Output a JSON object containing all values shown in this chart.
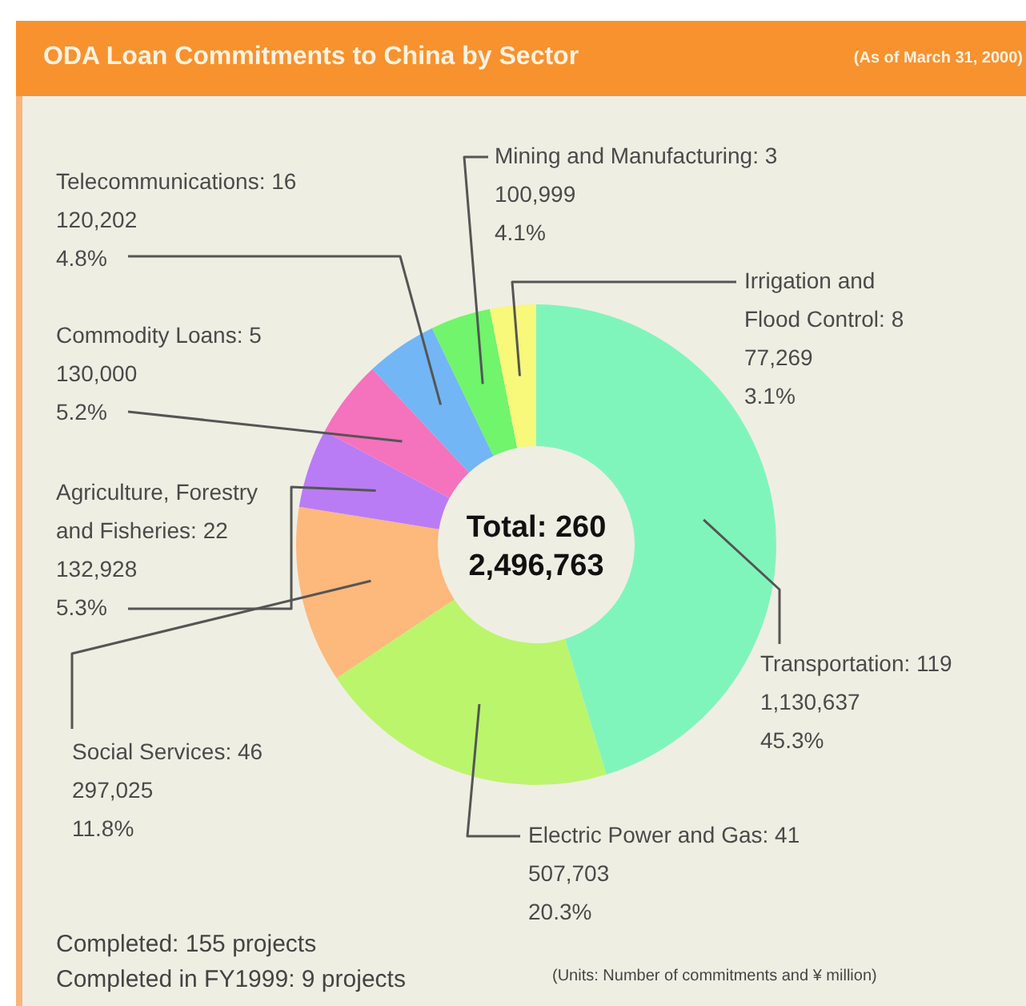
{
  "chart_data": {
    "type": "donut",
    "title": "ODA Loan Commitments to China by Sector",
    "subtitle": "(As of March 31, 2000)",
    "categories": [
      "Transportation: 119",
      "Electric Power and Gas: 41",
      "Social Services: 46",
      "Agriculture, Forestry\nand Fisheries: 22",
      "Commodity Loans: 5",
      "Telecommunications: 16",
      "Mining and Manufacturing: 3",
      "Irrigation and\nFlood Control: 8"
    ],
    "values": [
      1130637,
      507703,
      297025,
      132928,
      130000,
      120202,
      100999,
      77269
    ],
    "value_labels": [
      "1,130,637\n45.3%",
      "507,703\n20.3%",
      "297,025\n11.8%",
      "132,928\n5.3%",
      "130,000\n5.2%",
      "120,202\n4.8%",
      "100,999\n4.1%",
      "77,269\n3.1%"
    ],
    "colors": [
      "#80f5bb",
      "#bbf56c",
      "#fdb87c",
      "#b97cf5",
      "#f572bd",
      "#72b6f5",
      "#70f56c",
      "#f8f87a"
    ],
    "annotations": [
      "Total: 260",
      "2,496,763",
      "Completed: 155 projects",
      "Completed in FY1999: 9 projects",
      "(Units: Number of commitments and ¥ million)"
    ]
  }
}
